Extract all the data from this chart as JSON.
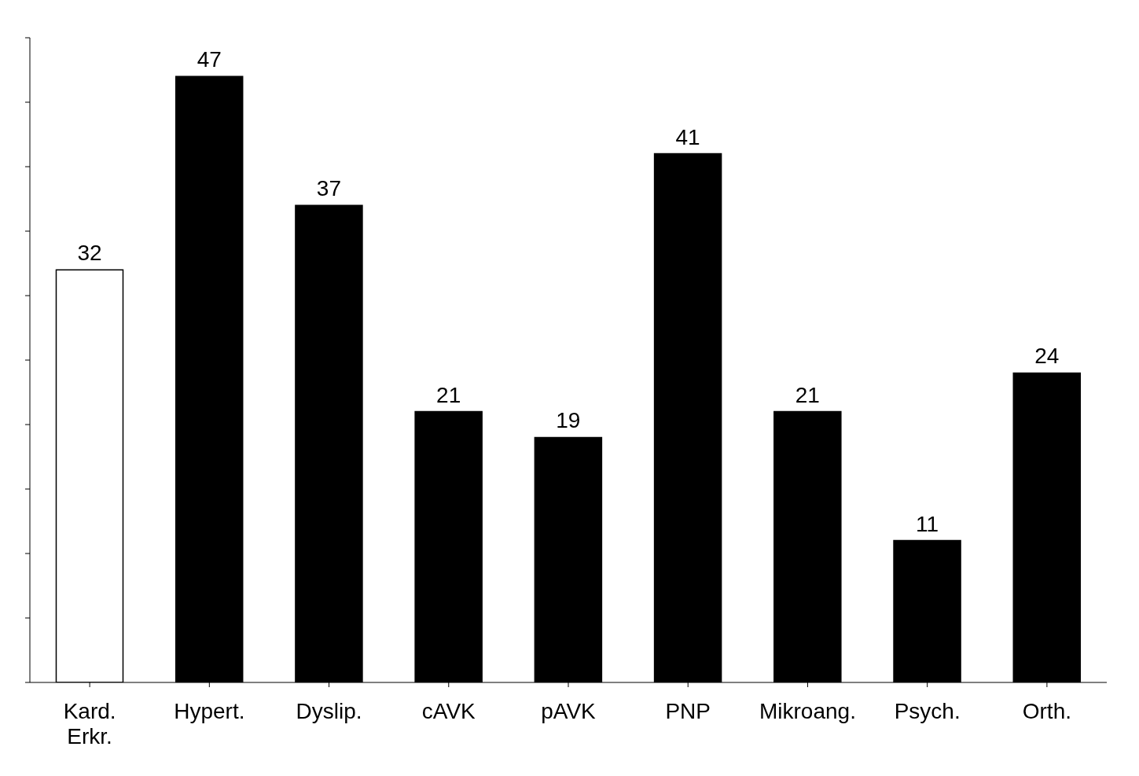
{
  "chart_data": {
    "type": "bar",
    "categories": [
      "Kard. Erkr.",
      "Hypert.",
      "Dyslip.",
      "cAVK",
      "pAVK",
      "PNP",
      "Mikroang.",
      "Psych.",
      "Orth."
    ],
    "values": [
      32,
      47,
      37,
      21,
      19,
      41,
      21,
      11,
      24
    ],
    "colors": [
      "#ffffff",
      "#000000",
      "#000000",
      "#000000",
      "#000000",
      "#000000",
      "#000000",
      "#000000",
      "#000000"
    ],
    "ylim": [
      0,
      50
    ],
    "yticks": [
      {
        "value": 0,
        "label": null
      },
      {
        "value": 5,
        "label": null
      },
      {
        "value": 10,
        "label": null
      },
      {
        "value": 15,
        "label": null
      },
      {
        "value": 20,
        "label": null
      },
      {
        "value": 25,
        "label": null
      },
      {
        "value": 30,
        "label": null
      },
      {
        "value": 35,
        "label": null
      },
      {
        "value": 40,
        "label": null
      },
      {
        "value": 45,
        "label": null
      },
      {
        "value": 50,
        "label": null
      }
    ],
    "tick_labels": "x",
    "data_labels": true,
    "grid": false,
    "legend": false
  }
}
